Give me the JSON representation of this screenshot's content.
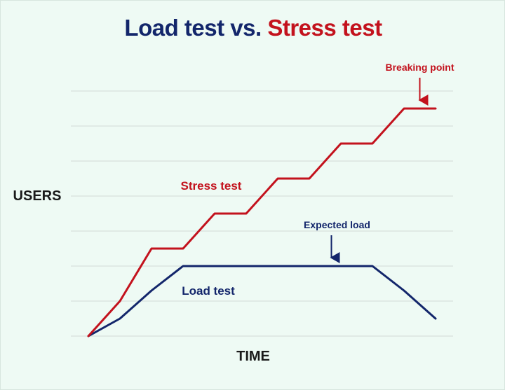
{
  "title": {
    "part1": "Load test",
    "part2": "vs.",
    "part3": "Stress test"
  },
  "colors": {
    "background": "#eefaf4",
    "load": "#13266b",
    "stress": "#c3121d",
    "grid": "#d3dbd6"
  },
  "chart_data": {
    "type": "line",
    "title": "Load test vs. Stress test",
    "xlabel": "TIME",
    "ylabel": "USERS",
    "grid": true,
    "xlim": [
      0,
      11
    ],
    "ylim": [
      0,
      7
    ],
    "series": [
      {
        "name": "Stress test",
        "x": [
          0,
          1,
          2,
          3,
          4,
          5,
          6,
          7,
          8,
          9,
          10,
          11
        ],
        "y": [
          0,
          1,
          2.5,
          2.5,
          3.5,
          3.5,
          4.5,
          4.5,
          5.5,
          5.5,
          6.5,
          6.5
        ]
      },
      {
        "name": "Load test",
        "x": [
          0,
          1,
          2,
          3,
          9,
          10,
          11
        ],
        "y": [
          0,
          0.5,
          1.3,
          2,
          2,
          1.3,
          0.5
        ]
      }
    ],
    "annotations": [
      {
        "text": "Breaking point",
        "series": "Stress test",
        "x": 10.5,
        "y": 6.5
      },
      {
        "text": "Expected load",
        "series": "Load test",
        "x": 7.7,
        "y": 2
      }
    ]
  }
}
